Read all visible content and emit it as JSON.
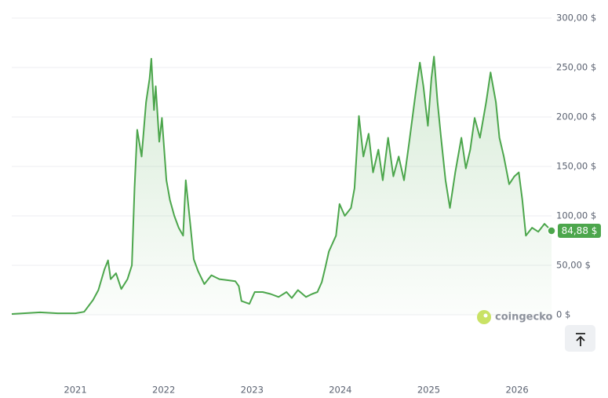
{
  "chart_data": {
    "type": "line",
    "x": [
      2020.28,
      2020.6,
      2020.8,
      2021.0,
      2021.1,
      2021.2,
      2021.26,
      2021.33,
      2021.37,
      2021.4,
      2021.46,
      2021.52,
      2021.59,
      2021.64,
      2021.67,
      2021.7,
      2021.75,
      2021.8,
      2021.84,
      2021.86,
      2021.89,
      2021.91,
      2021.95,
      2021.98,
      2022.03,
      2022.07,
      2022.12,
      2022.17,
      2022.22,
      2022.25,
      2022.3,
      2022.34,
      2022.39,
      2022.46,
      2022.54,
      2022.63,
      2022.72,
      2022.81,
      2022.85,
      2022.88,
      2022.97,
      2023.03,
      2023.12,
      2023.21,
      2023.3,
      2023.39,
      2023.45,
      2023.52,
      2023.61,
      2023.68,
      2023.74,
      2023.79,
      2023.83,
      2023.87,
      2023.95,
      2023.99,
      2024.05,
      2024.12,
      2024.16,
      2024.21,
      2024.26,
      2024.32,
      2024.37,
      2024.43,
      2024.48,
      2024.54,
      2024.6,
      2024.66,
      2024.72,
      2024.78,
      2024.85,
      2024.9,
      2024.94,
      2024.99,
      2025.03,
      2025.06,
      2025.1,
      2025.14,
      2025.19,
      2025.24,
      2025.3,
      2025.37,
      2025.42,
      2025.47,
      2025.52,
      2025.58,
      2025.65,
      2025.7,
      2025.76,
      2025.8,
      2025.85,
      2025.91,
      2025.97,
      2026.02,
      2026.06,
      2026.1,
      2026.17,
      2026.24,
      2026.31,
      2026.39
    ],
    "series": [
      {
        "color": "#4ca64c",
        "values": [
          0.8,
          2.5,
          1.5,
          1.5,
          3,
          15,
          25,
          46,
          55,
          36,
          42,
          26,
          36,
          50,
          128,
          187,
          160,
          215,
          239,
          259,
          207,
          231,
          175,
          199,
          136,
          116,
          100,
          88,
          80,
          136,
          92,
          56,
          44,
          31,
          40,
          36,
          35,
          34,
          29,
          14,
          11,
          23,
          23,
          21,
          18,
          23,
          17,
          25,
          18,
          21,
          23,
          33,
          48,
          64,
          80,
          112,
          100,
          108,
          128,
          201,
          160,
          183,
          144,
          167,
          136,
          179,
          140,
          160,
          136,
          175,
          223,
          255,
          231,
          191,
          239,
          261,
          215,
          179,
          136,
          108,
          144,
          179,
          148,
          167,
          199,
          179,
          215,
          245,
          215,
          179,
          160,
          132,
          140,
          144,
          116,
          80,
          88,
          84,
          92,
          84.88
        ]
      }
    ],
    "current_price": 84.88,
    "current_price_label": "84,88 $",
    "xlim": [
      2020.28,
      2026.39
    ],
    "xticks": [
      2021,
      2022,
      2023,
      2024,
      2025,
      2026
    ],
    "ylim": [
      0,
      300
    ],
    "yticks": [
      {
        "value": 0,
        "label": "0 $"
      },
      {
        "value": 50,
        "label": "50,00 $"
      },
      {
        "value": 100,
        "label": "100,00 $"
      },
      {
        "value": 150,
        "label": "150,00 $"
      },
      {
        "value": 200,
        "label": "200,00 $"
      },
      {
        "value": 250,
        "label": "250,00 $"
      },
      {
        "value": 300,
        "label": "300,00 $"
      }
    ],
    "grid": true,
    "watermark": "coingecko"
  }
}
